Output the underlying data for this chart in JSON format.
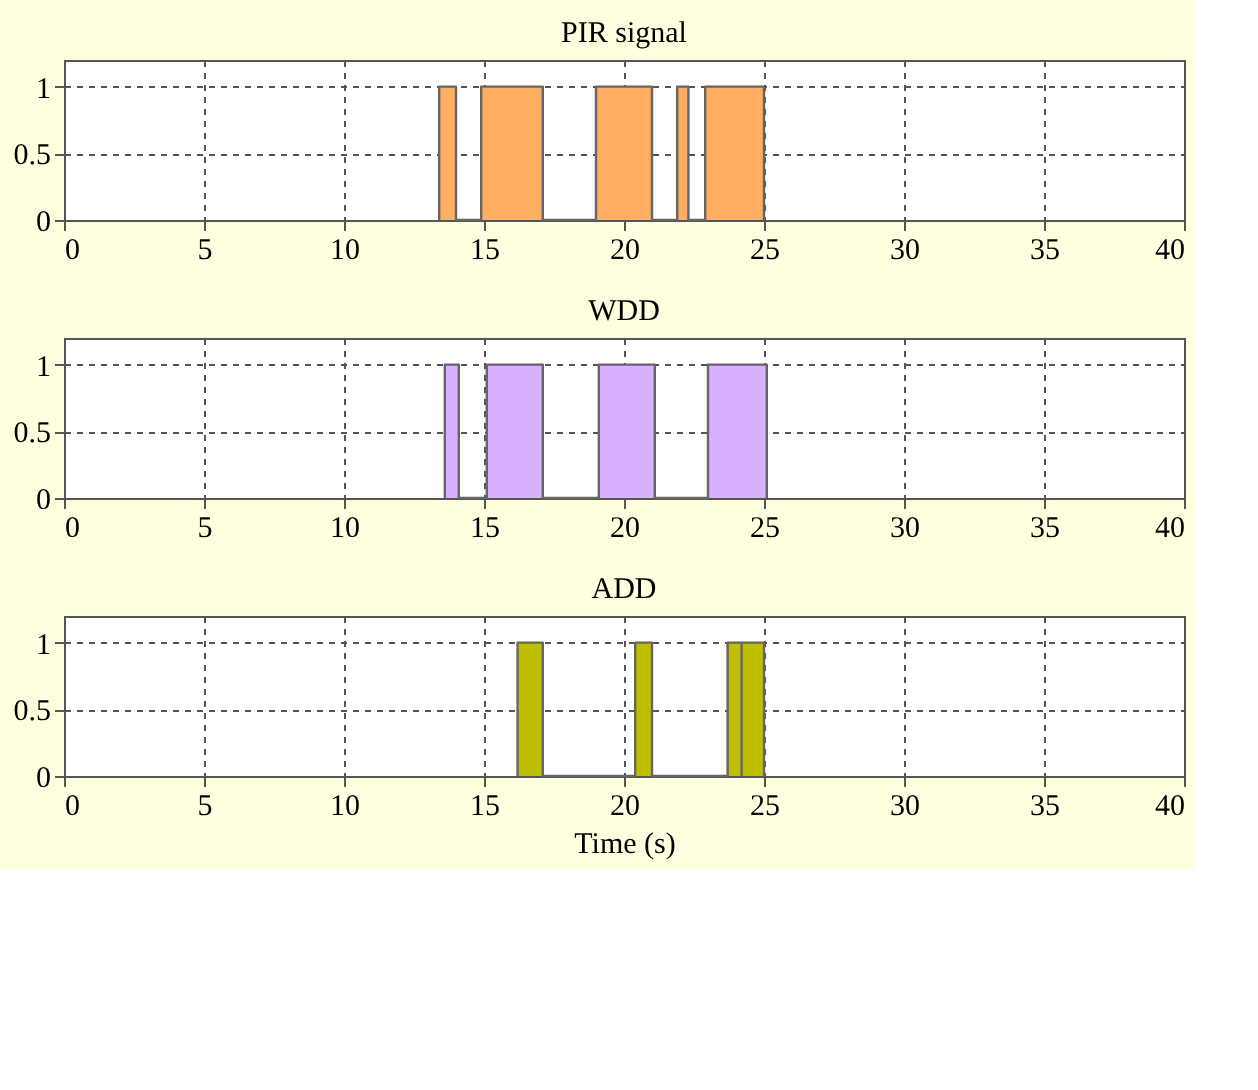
{
  "chart_data": [
    {
      "type": "area",
      "title": "PIR signal",
      "x": [
        13.4,
        13.4,
        14.0,
        14.0,
        14.9,
        14.9,
        17.1,
        17.1,
        19.0,
        19.0,
        21.0,
        21.0,
        21.9,
        21.9,
        22.3,
        22.3,
        22.9,
        22.9,
        25.0,
        25.0
      ],
      "series": [
        {
          "color": "#ffad60",
          "values": [
            0,
            1,
            1,
            0,
            0,
            1,
            1,
            0,
            0,
            1,
            1,
            0,
            0,
            1,
            1,
            0,
            0,
            1,
            1,
            0
          ]
        }
      ],
      "xlim": [
        0,
        40
      ],
      "xticks": [
        0,
        5,
        10,
        15,
        20,
        25,
        30,
        35,
        40
      ],
      "ylim": [
        0,
        1.2
      ],
      "yticks": [
        0,
        0.5,
        1
      ],
      "grid": true,
      "legend": false
    },
    {
      "type": "area",
      "title": "WDD",
      "x": [
        13.6,
        13.6,
        14.1,
        14.1,
        15.1,
        15.1,
        17.1,
        17.1,
        19.1,
        19.1,
        21.1,
        21.1,
        23.0,
        23.0,
        25.1,
        25.1
      ],
      "series": [
        {
          "color": "#d8b0ff",
          "values": [
            0,
            1,
            1,
            0,
            0,
            1,
            1,
            0,
            0,
            1,
            1,
            0,
            0,
            1,
            1,
            0
          ]
        }
      ],
      "xlim": [
        0,
        40
      ],
      "xticks": [
        0,
        5,
        10,
        15,
        20,
        25,
        30,
        35,
        40
      ],
      "ylim": [
        0,
        1.2
      ],
      "yticks": [
        0,
        0.5,
        1
      ],
      "grid": true,
      "legend": false
    },
    {
      "type": "area",
      "title": "ADD",
      "xlabel": "Time (s)",
      "x": [
        16.2,
        16.2,
        17.1,
        17.1,
        20.4,
        20.4,
        21.0,
        21.0,
        23.7,
        23.7,
        24.2,
        24.2,
        24.2,
        24.2,
        25.0,
        25.0
      ],
      "series": [
        {
          "color": "#bfbf00",
          "values": [
            0,
            1,
            1,
            0,
            0,
            1,
            1,
            0,
            0,
            1,
            1,
            0,
            0,
            1,
            1,
            0
          ]
        }
      ],
      "xlim": [
        0,
        40
      ],
      "xticks": [
        0,
        5,
        10,
        15,
        20,
        25,
        30,
        35,
        40
      ],
      "ylim": [
        0,
        1.2
      ],
      "yticks": [
        0,
        0.5,
        1
      ],
      "grid": true,
      "legend": false
    }
  ]
}
